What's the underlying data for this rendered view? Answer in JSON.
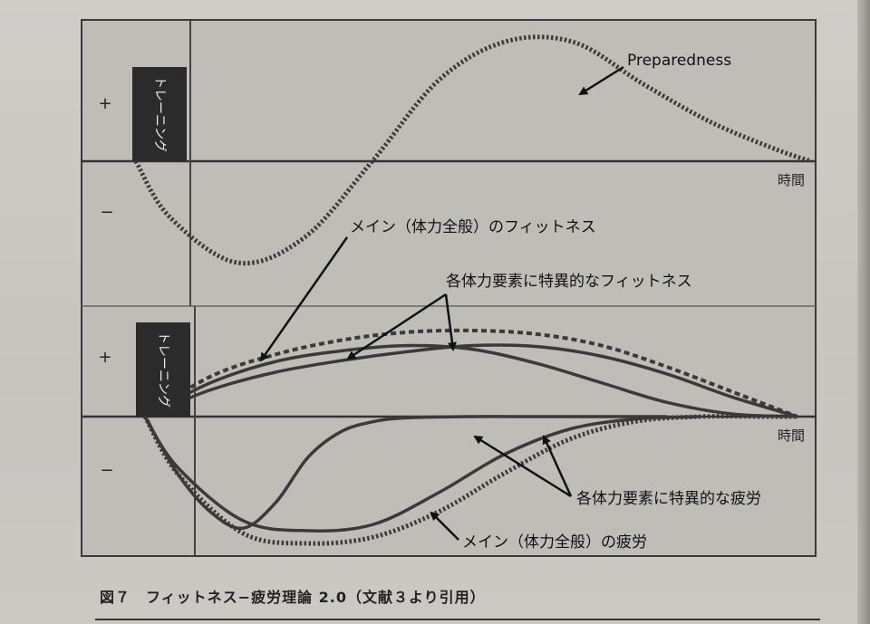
{
  "chart_data": [
    {
      "type": "line",
      "panel": "top",
      "x_label": "時間",
      "y_positive_label": "+",
      "y_negative_label": "−",
      "training_label": "トレーニング",
      "xlim": [
        0,
        10
      ],
      "ylim": [
        -1,
        1
      ],
      "series": [
        {
          "name": "Preparedness",
          "style": "dotted",
          "x": [
            0,
            0.5,
            1.5,
            2.5,
            3.5,
            4.5,
            5.5,
            6.5,
            7.5,
            8.5,
            9.5,
            10
          ],
          "y": [
            0,
            -0.55,
            -1.0,
            -0.75,
            0.0,
            0.58,
            0.85,
            0.84,
            0.55,
            0.28,
            0.08,
            0.0
          ]
        }
      ],
      "annotations": [
        {
          "text": "Preparedness",
          "target_series": "Preparedness"
        }
      ]
    },
    {
      "type": "line",
      "panel": "bottom",
      "x_label": "時間",
      "y_positive_label": "+",
      "y_negative_label": "−",
      "training_label": "トレーニング",
      "xlim": [
        0,
        10
      ],
      "ylim": [
        -1,
        1
      ],
      "series": [
        {
          "name": "メイン（体力全般）のフィットネス",
          "style": "dashed",
          "x": [
            0,
            1,
            2,
            3,
            4,
            5,
            6,
            7,
            8,
            9,
            10
          ],
          "y": [
            0,
            0.45,
            0.7,
            0.86,
            0.95,
            0.97,
            0.93,
            0.8,
            0.56,
            0.28,
            0.0
          ]
        },
        {
          "name": "各体力要素に特異的なフィットネス 1",
          "style": "solid",
          "x": [
            0,
            1,
            2,
            3,
            4,
            5,
            6,
            7,
            8,
            9,
            10
          ],
          "y": [
            0,
            0.38,
            0.62,
            0.74,
            0.8,
            0.76,
            0.6,
            0.38,
            0.16,
            0.03,
            0.0
          ]
        },
        {
          "name": "各体力要素に特異的なフィットネス 2",
          "style": "solid",
          "x": [
            0,
            1,
            2,
            3,
            4,
            5,
            6,
            7,
            8,
            9,
            10
          ],
          "y": [
            0,
            0.3,
            0.5,
            0.63,
            0.73,
            0.8,
            0.79,
            0.68,
            0.48,
            0.22,
            0.0
          ]
        },
        {
          "name": "メイン（体力全般）の疲労",
          "style": "dotted",
          "x": [
            0,
            0.5,
            1.5,
            2.5,
            3.5,
            4.5,
            5.5,
            6.5,
            7.5,
            8.5,
            9.5,
            10
          ],
          "y": [
            0,
            -0.45,
            -0.92,
            -1.0,
            -0.95,
            -0.75,
            -0.45,
            -0.18,
            -0.04,
            0.0,
            0.0,
            0.0
          ]
        },
        {
          "name": "各体力要素に特異的な疲労 1",
          "style": "solid",
          "x": [
            0,
            0.5,
            1,
            1.5,
            2,
            2.5,
            3,
            3.5,
            4,
            5,
            6,
            7,
            8
          ],
          "y": [
            0,
            -0.45,
            -0.75,
            -0.88,
            -0.68,
            -0.32,
            -0.12,
            -0.04,
            -0.01,
            0.0,
            0.0,
            0.0,
            0.0
          ]
        },
        {
          "name": "各体力要素に特異的な疲労 2",
          "style": "solid",
          "x": [
            0,
            0.5,
            1.5,
            2.5,
            3.5,
            4.5,
            5.5,
            6.5,
            7.5,
            8.5
          ],
          "y": [
            0,
            -0.4,
            -0.82,
            -0.9,
            -0.85,
            -0.6,
            -0.3,
            -0.1,
            -0.02,
            0.0
          ]
        }
      ],
      "annotations": [
        {
          "text": "メイン（体力全般）のフィットネス"
        },
        {
          "text": "各体力要素に特異的なフィットネス"
        },
        {
          "text": "各体力要素に特異的な疲労"
        },
        {
          "text": "メイン（体力全般）の疲労"
        }
      ]
    }
  ],
  "caption": "図７　フィットネス−疲労理論 2.0（文献３より引用）"
}
